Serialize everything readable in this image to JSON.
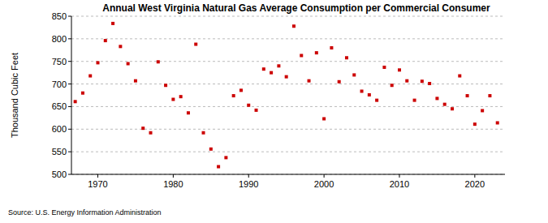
{
  "chart_data": {
    "type": "scatter",
    "title": "Annual West Virginia Natural Gas Average Consumption per Commercial Consumer",
    "y_label": "Thousand Cubic Feet",
    "source": "Source: U.S. Energy Information Administration",
    "x": [
      1967,
      1968,
      1969,
      1970,
      1971,
      1972,
      1973,
      1974,
      1975,
      1976,
      1977,
      1978,
      1979,
      1980,
      1981,
      1982,
      1983,
      1984,
      1985,
      1986,
      1987,
      1988,
      1989,
      1990,
      1991,
      1992,
      1993,
      1994,
      1995,
      1996,
      1997,
      1998,
      1999,
      2000,
      2001,
      2002,
      2003,
      2004,
      2005,
      2006,
      2007,
      2008,
      2009,
      2010,
      2011,
      2012,
      2013,
      2014,
      2015,
      2016,
      2017,
      2018,
      2019,
      2020,
      2021,
      2022,
      2023
    ],
    "values": [
      661,
      680,
      718,
      747,
      796,
      834,
      783,
      745,
      707,
      602,
      592,
      749,
      697,
      666,
      672,
      636,
      788,
      592,
      556,
      517,
      537,
      674,
      686,
      653,
      642,
      733,
      725,
      740,
      716,
      828,
      763,
      707,
      769,
      623,
      780,
      705,
      758,
      720,
      684,
      676,
      664,
      737,
      697,
      731,
      707,
      664,
      706,
      701,
      668,
      655,
      645,
      718,
      674,
      611,
      641,
      674,
      614
    ],
    "color": "#cc0000",
    "marker": "square",
    "xlim": [
      1966.5,
      2024
    ],
    "xticks": [
      1970,
      1980,
      1990,
      2000,
      2010,
      2020
    ],
    "ylim": [
      500,
      850
    ],
    "yticks": [
      500,
      550,
      600,
      650,
      700,
      750,
      800,
      850
    ],
    "grid": true
  }
}
